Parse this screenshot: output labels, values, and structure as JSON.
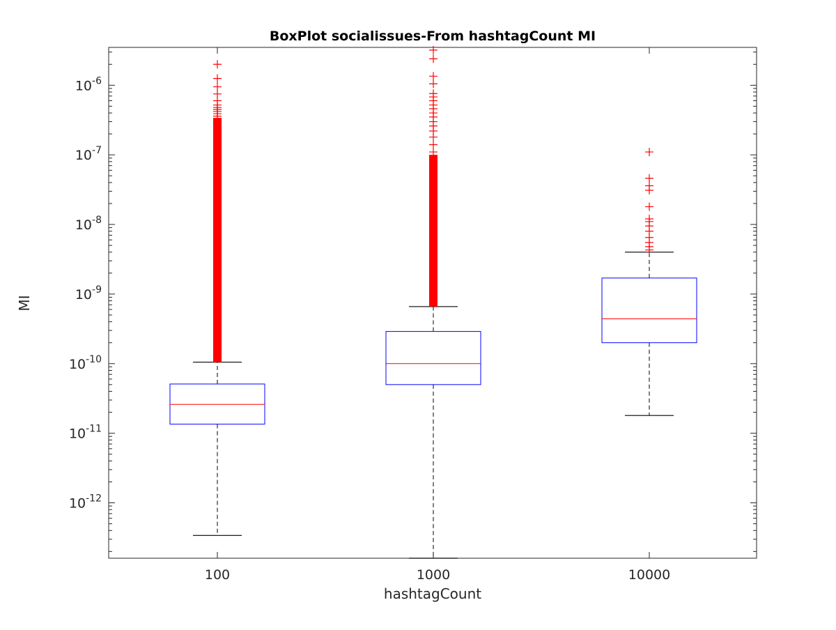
{
  "chart_data": {
    "type": "box",
    "title": "BoxPlot socialissues-From hashtagCount MI",
    "xlabel": "hashtagCount",
    "ylabel": "MI",
    "yscale": "log",
    "ylim": [
      1.6e-13,
      3.5e-06
    ],
    "categories": [
      "100",
      "1000",
      "10000"
    ],
    "y_tick_values": [
      1e-12,
      1e-11,
      1e-10,
      1e-09,
      1e-08,
      1e-07,
      1e-06
    ],
    "y_tick_labels": [
      {
        "base": "10",
        "exp": "-12"
      },
      {
        "base": "10",
        "exp": "-11"
      },
      {
        "base": "10",
        "exp": "-10"
      },
      {
        "base": "10",
        "exp": "-9"
      },
      {
        "base": "10",
        "exp": "-8"
      },
      {
        "base": "10",
        "exp": "-7"
      },
      {
        "base": "10",
        "exp": "-6"
      }
    ],
    "boxes": [
      {
        "category": "100",
        "whisker_low": 3.4e-13,
        "q1": 1.35e-11,
        "median": 2.6e-11,
        "q3": 5.1e-11,
        "whisker_high": 1.05e-10,
        "outlier_band": [
          1.05e-10,
          3.4e-07
        ],
        "outliers": [
          3.6e-07,
          3.9e-07,
          4.2e-07,
          4.5e-07,
          4.8e-07,
          5.2e-07,
          6e-07,
          7.5e-07,
          9.5e-07,
          1.25e-06,
          2e-06
        ]
      },
      {
        "category": "1000",
        "whisker_low": 1.6e-13,
        "q1": 5e-11,
        "median": 1e-10,
        "q3": 2.9e-10,
        "whisker_high": 6.6e-10,
        "outlier_band": [
          6.6e-10,
          1e-07
        ],
        "outliers": [
          1.1e-07,
          1.4e-07,
          1.8e-07,
          2.2e-07,
          2.6e-07,
          3e-07,
          3.5e-07,
          4e-07,
          4.6e-07,
          5.2e-07,
          6e-07,
          6.8e-07,
          7.6e-07,
          1.05e-06,
          1.35e-06,
          2.4e-06,
          3.2e-06
        ]
      },
      {
        "category": "10000",
        "whisker_low": 1.8e-11,
        "q1": 2e-10,
        "median": 4.4e-10,
        "q3": 1.7e-09,
        "whisker_high": 4e-09,
        "outliers": [
          4.3e-09,
          4.8e-09,
          5.5e-09,
          6.5e-09,
          8e-09,
          9.5e-09,
          1.1e-08,
          1.2e-08,
          1.8e-08,
          3.1e-08,
          3.6e-08,
          4.6e-08,
          1.1e-07
        ]
      }
    ],
    "colors": {
      "box": "#0000ff",
      "median": "#ff0000",
      "whisker": "#000000",
      "outlier": "#ff0000",
      "axes": "#262626"
    },
    "grid": false,
    "legend": "none"
  }
}
